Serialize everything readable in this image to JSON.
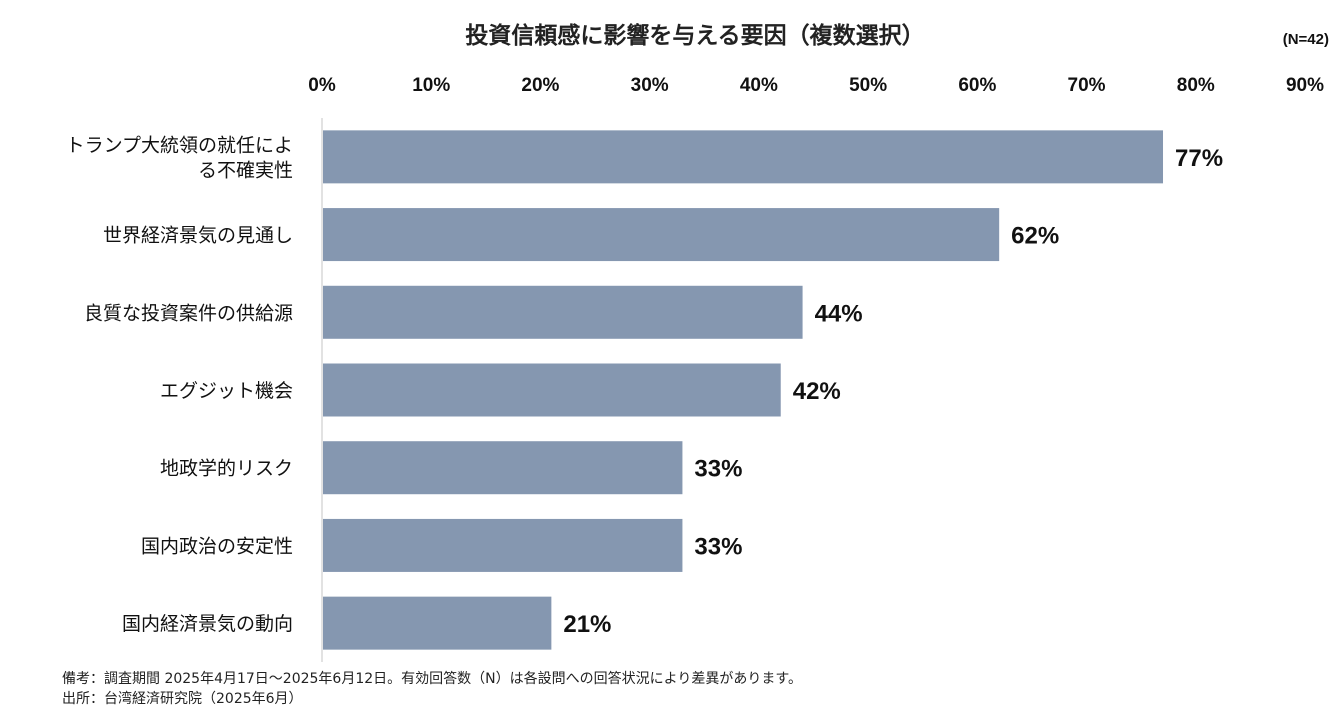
{
  "sample_size": "(N=42)",
  "notes": {
    "remark": "備考：調査期間 2025年4月17日～2025年6月12日。有効回答数（N）は各設問への回答状況により差異があります。",
    "source": "出所：台湾経済研究院（2025年6月）"
  },
  "colors": {
    "bar": "#8597b0",
    "axis": "#d9d9d9"
  },
  "chart_data": {
    "type": "bar",
    "orientation": "horizontal",
    "title": "投資信頼感に影響を与える要因（複数選択）",
    "xlabel": "",
    "ylabel": "",
    "xlim": [
      0,
      90
    ],
    "x_ticks": [
      0,
      10,
      20,
      30,
      40,
      50,
      60,
      70,
      80,
      90
    ],
    "x_tick_labels": [
      "0%",
      "10%",
      "20%",
      "30%",
      "40%",
      "50%",
      "60%",
      "70%",
      "80%",
      "90%"
    ],
    "x_axis_position": "top",
    "grid": false,
    "legend": "none",
    "categories": [
      "トランプ大統領の就任による不確実性",
      "世界経済景気の見通し",
      "良質な投資案件の供給源",
      "エグジット機会",
      "地政学的リスク",
      "国内政治の安定性",
      "国内経済景気の動向"
    ],
    "category_label_lines": [
      [
        "トランプ大統領の就任によ",
        "る不確実性"
      ],
      [
        "世界経済景気の見通し"
      ],
      [
        "良質な投資案件の供給源"
      ],
      [
        "エグジット機会"
      ],
      [
        "地政学的リスク"
      ],
      [
        "国内政治の安定性"
      ],
      [
        "国内経済景気の動向"
      ]
    ],
    "values": [
      77,
      62,
      44,
      42,
      33,
      33,
      21
    ],
    "value_labels": [
      "77%",
      "62%",
      "44%",
      "42%",
      "33%",
      "33%",
      "21%"
    ]
  }
}
